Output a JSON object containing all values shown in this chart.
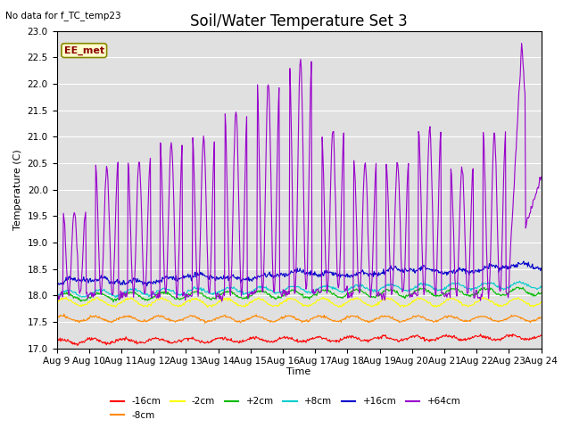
{
  "title": "Soil/Water Temperature Set 3",
  "subtitle": "No data for f_TC_temp23",
  "ylabel": "Temperature (C)",
  "xlabel": "Time",
  "annotation": "EE_met",
  "ylim": [
    17.0,
    23.0
  ],
  "yticks": [
    17.0,
    17.5,
    18.0,
    18.5,
    19.0,
    19.5,
    20.0,
    20.5,
    21.0,
    21.5,
    22.0,
    22.5,
    23.0
  ],
  "xtick_labels": [
    "Aug 9",
    "Aug 10",
    "Aug 11",
    "Aug 12",
    "Aug 13",
    "Aug 14",
    "Aug 15",
    "Aug 16",
    "Aug 17",
    "Aug 18",
    "Aug 19",
    "Aug 20",
    "Aug 21",
    "Aug 22",
    "Aug 23",
    "Aug 24"
  ],
  "series_colors": {
    "-16cm": "#ff0000",
    "-8cm": "#ff8800",
    "-2cm": "#ffff00",
    "+2cm": "#00bb00",
    "+8cm": "#00cccc",
    "+16cm": "#0000cc",
    "+64cm": "#9900cc"
  },
  "series_labels": [
    "-16cm",
    "-8cm",
    "-2cm",
    "+2cm",
    "+8cm",
    "+16cm",
    "+64cm"
  ],
  "background_color": "#e0e0e0",
  "fig_background": "#ffffff",
  "title_fontsize": 12,
  "label_fontsize": 8,
  "tick_fontsize": 7.5
}
